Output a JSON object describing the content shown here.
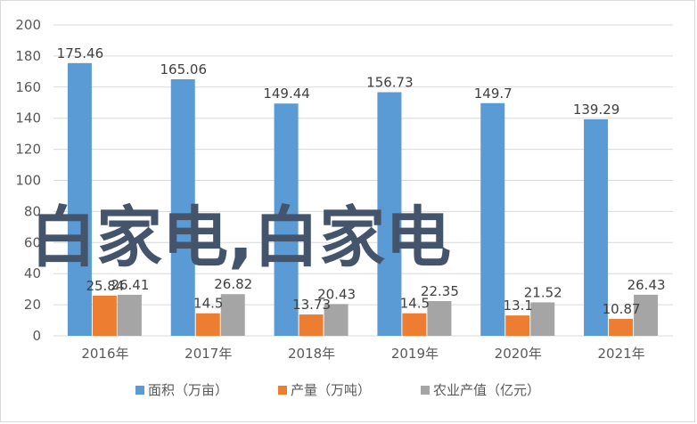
{
  "chart_data": {
    "type": "bar",
    "categories": [
      "2016年",
      "2017年",
      "2018年",
      "2019年",
      "2020年",
      "2021年"
    ],
    "series": [
      {
        "name": "面积（万亩）",
        "values": [
          175.46,
          165.06,
          149.44,
          156.73,
          149.7,
          139.29
        ],
        "color": "#5b9bd5"
      },
      {
        "name": "产量（万吨）",
        "values": [
          25.84,
          14.5,
          13.73,
          14.5,
          13.1,
          10.87
        ],
        "color": "#ed7d31"
      },
      {
        "name": "农业产值（亿元）",
        "values": [
          26.41,
          26.82,
          20.43,
          22.35,
          21.52,
          26.43
        ],
        "color": "#a5a5a5"
      }
    ],
    "data_labels": [
      [
        "175.46",
        "165.06",
        "149.44",
        "156.73",
        "149.7",
        "139.29"
      ],
      [
        "25.84",
        "14.5",
        "13.73",
        "14.5",
        "13.1",
        "10.87"
      ],
      [
        "26.41",
        "26.82",
        "20.43",
        "22.35",
        "21.52",
        "26.43"
      ]
    ],
    "yticks": [
      "0",
      "20",
      "40",
      "60",
      "80",
      "100",
      "120",
      "140",
      "160",
      "180",
      "200"
    ],
    "ylim": [
      0,
      200
    ],
    "grid": true,
    "legend_position": "bottom",
    "title": "",
    "xlabel": "",
    "ylabel": ""
  },
  "watermark": "白家电,白家电"
}
